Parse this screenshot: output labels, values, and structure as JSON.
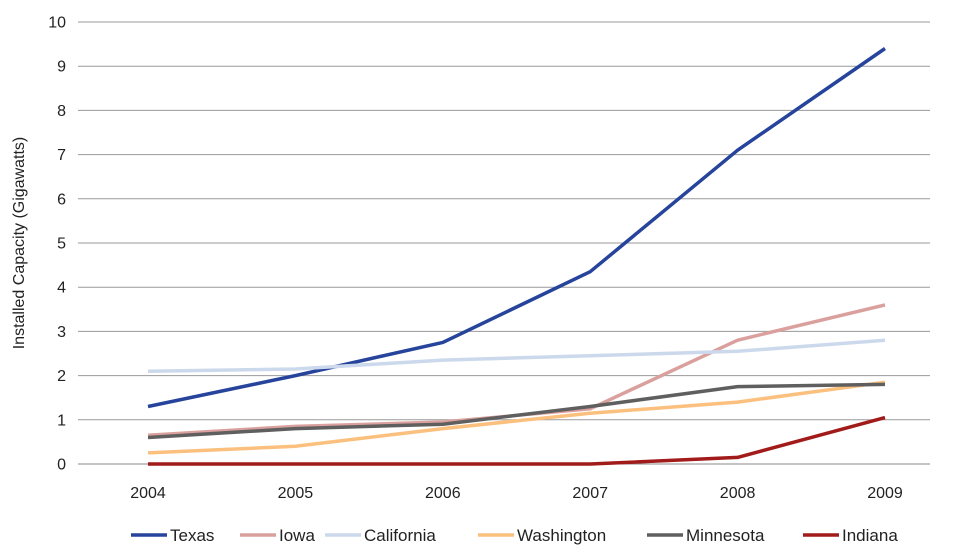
{
  "chart_data": {
    "type": "line",
    "title": "",
    "xlabel": "",
    "ylabel": "Installed Capacity (Gigawatts)",
    "categories": [
      "2004",
      "2005",
      "2006",
      "2007",
      "2008",
      "2009"
    ],
    "ylim": [
      0,
      10
    ],
    "yticks": [
      0,
      1,
      2,
      3,
      4,
      5,
      6,
      7,
      8,
      9,
      10
    ],
    "grid": true,
    "legend_position": "bottom",
    "series": [
      {
        "name": "Texas",
        "color": "#26449b",
        "values": [
          1.3,
          2.0,
          2.75,
          4.35,
          7.1,
          9.4
        ]
      },
      {
        "name": "Iowa",
        "color": "#d9a09e",
        "values": [
          0.65,
          0.85,
          0.95,
          1.25,
          2.8,
          3.6
        ]
      },
      {
        "name": "California",
        "color": "#ccd9ec",
        "values": [
          2.1,
          2.15,
          2.35,
          2.45,
          2.55,
          2.8
        ]
      },
      {
        "name": "Washington",
        "color": "#fbc07e",
        "values": [
          0.25,
          0.4,
          0.8,
          1.15,
          1.4,
          1.85
        ]
      },
      {
        "name": "Minnesota",
        "color": "#5f5f5f",
        "values": [
          0.6,
          0.8,
          0.9,
          1.3,
          1.75,
          1.8
        ]
      },
      {
        "name": "Indiana",
        "color": "#a11b1b",
        "values": [
          0.0,
          0.0,
          0.0,
          0.0,
          0.15,
          1.05
        ]
      }
    ]
  }
}
